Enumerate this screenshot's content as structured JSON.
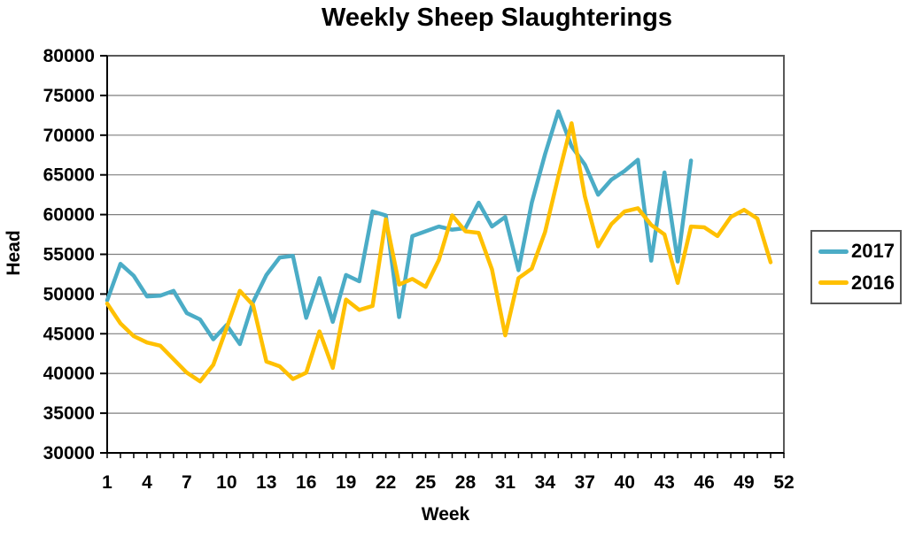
{
  "title": "Weekly Sheep Slaughterings",
  "axes": {
    "y_label": "Head",
    "x_label": "Week"
  },
  "legend": {
    "entries": [
      {
        "label": "2017",
        "color": "#4BACC6"
      },
      {
        "label": "2016",
        "color": "#FFC000"
      }
    ]
  },
  "layout_colors": {
    "gridline": "#7F7F7F",
    "plot_border": "#595959",
    "axis": "#000000",
    "background": "#FFFFFF",
    "text": "#000000"
  },
  "chart_data": {
    "type": "line",
    "title": "Weekly Sheep Slaughterings",
    "xlabel": "Week",
    "ylabel": "Head",
    "xlim": [
      1,
      52
    ],
    "ylim": [
      30000,
      80000
    ],
    "y_tick_step": 5000,
    "x_ticks": [
      1,
      4,
      7,
      10,
      13,
      16,
      19,
      22,
      25,
      28,
      31,
      34,
      37,
      40,
      43,
      46,
      49,
      52
    ],
    "grid": true,
    "legend_position": "right",
    "series": [
      {
        "name": "2017",
        "color": "#4BACC6",
        "x_start": 1,
        "values": [
          49200,
          53800,
          52300,
          49700,
          49800,
          50400,
          47600,
          46800,
          44300,
          46100,
          43700,
          49000,
          52400,
          54600,
          54800,
          47000,
          52000,
          46500,
          52400,
          51600,
          60400,
          59900,
          47100,
          57300,
          57900,
          58500,
          58100,
          58300,
          61500,
          58500,
          59700,
          53000,
          61500,
          67600,
          73000,
          68600,
          66300,
          62500,
          64400,
          65500,
          66900,
          54200,
          65300,
          54100,
          66800
        ]
      },
      {
        "name": "2016",
        "color": "#FFC000",
        "x_start": 1,
        "values": [
          48800,
          46300,
          44700,
          43900,
          43500,
          41800,
          40100,
          39000,
          41100,
          45700,
          50400,
          48600,
          41500,
          40900,
          39300,
          40100,
          45300,
          40700,
          49300,
          48000,
          48500,
          59400,
          51200,
          51900,
          50900,
          54300,
          59900,
          57900,
          57700,
          53100,
          44800,
          52000,
          53200,
          57800,
          64800,
          71500,
          62300,
          56000,
          58800,
          60400,
          60800,
          58700,
          57500,
          51400,
          58500,
          58400,
          57300,
          59700,
          60600,
          59500,
          54000
        ]
      }
    ]
  }
}
